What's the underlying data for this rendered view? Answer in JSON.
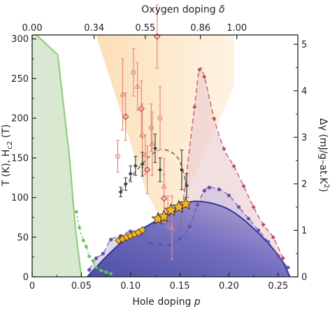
{
  "chart_data": {
    "type": "scatter",
    "xlabel_prefix": "Hole doping ",
    "xlabel_var": "p",
    "ylabel_left": "T (K), H",
    "ylabel_left_sub": "c2",
    "ylabel_left_suffix": " (T)",
    "xlabel_top_prefix": "Oxygen doping ",
    "xlabel_top_var": "δ",
    "ylabel_right": "Δγ (mJ/g–at.K",
    "ylabel_right_sup": "2",
    "ylabel_right_suffix": ")",
    "xlim": [
      0,
      0.27
    ],
    "ylim_left": [
      0,
      305
    ],
    "ylim_right": [
      0,
      5.2
    ],
    "x_ticks": [
      {
        "v": 0,
        "label": "0"
      },
      {
        "v": 0.05,
        "label": "0.05"
      },
      {
        "v": 0.1,
        "label": "0.10"
      },
      {
        "v": 0.15,
        "label": "0.15"
      },
      {
        "v": 0.2,
        "label": "0.20"
      },
      {
        "v": 0.25,
        "label": "0.25"
      }
    ],
    "y_ticks_left": [
      {
        "v": 0,
        "label": "0"
      },
      {
        "v": 50,
        "label": "50"
      },
      {
        "v": 100,
        "label": "100"
      },
      {
        "v": 150,
        "label": "150"
      },
      {
        "v": 200,
        "label": "200"
      },
      {
        "v": 250,
        "label": "250"
      },
      {
        "v": 300,
        "label": "300"
      }
    ],
    "y_ticks_right": [
      {
        "v": 0,
        "label": "0"
      },
      {
        "v": 1,
        "label": "1"
      },
      {
        "v": 2,
        "label": "2"
      },
      {
        "v": 3,
        "label": "3"
      },
      {
        "v": 4,
        "label": "4"
      },
      {
        "v": 5,
        "label": "5"
      }
    ],
    "top_ticks": [
      {
        "p": 0.0,
        "label": "0.00"
      },
      {
        "p": 0.063,
        "label": "0.34"
      },
      {
        "p": 0.115,
        "label": "0.55"
      },
      {
        "p": 0.171,
        "label": "0.86"
      },
      {
        "p": 0.208,
        "label": "1.00"
      }
    ],
    "colors": {
      "afm_fill": "#cfe3c5",
      "afm_line": "#8fcf7f",
      "green_points": "#6cbf5a",
      "pseudogap": "#fbd9a8",
      "pseudogap_points": "#e8887a",
      "dome_fill": "#5a59b3",
      "dome_line": "#2c3a9a",
      "cdw_points": "#3d3d3d",
      "orange_points": "#f5b62a",
      "star_fill": "#f7b42b",
      "purple": "#6b4fa8",
      "magenta": "#c2455a",
      "pink_fill": "#e9c9cf"
    },
    "series": [
      {
        "key": "tc_dome",
        "points": [
          [
            0.056,
            0
          ],
          [
            0.065,
            12
          ],
          [
            0.075,
            25
          ],
          [
            0.085,
            37
          ],
          [
            0.095,
            48
          ],
          [
            0.105,
            57
          ],
          [
            0.115,
            63
          ],
          [
            0.125,
            70
          ],
          [
            0.135,
            78
          ],
          [
            0.145,
            86
          ],
          [
            0.155,
            92
          ],
          [
            0.163,
            95
          ],
          [
            0.172,
            95
          ],
          [
            0.185,
            92
          ],
          [
            0.2,
            85
          ],
          [
            0.215,
            72
          ],
          [
            0.23,
            55
          ],
          [
            0.245,
            35
          ],
          [
            0.255,
            18
          ],
          [
            0.262,
            0
          ]
        ]
      },
      {
        "key": "afm_neel",
        "points": [
          [
            0.0,
            310
          ],
          [
            0.026,
            280
          ],
          [
            0.038,
            150
          ],
          [
            0.044,
            60
          ],
          [
            0.05,
            0
          ]
        ]
      },
      {
        "key": "green_points",
        "points": [
          [
            0.045,
            82
          ],
          [
            0.048,
            62
          ],
          [
            0.052,
            46
          ],
          [
            0.055,
            38
          ],
          [
            0.058,
            26
          ],
          [
            0.062,
            20
          ],
          [
            0.065,
            12
          ],
          [
            0.07,
            8
          ],
          [
            0.075,
            6
          ],
          [
            0.08,
            4
          ]
        ]
      },
      {
        "key": "pseudogap_points",
        "points": [
          {
            "x": 0.087,
            "y": 152,
            "err": 20
          },
          {
            "x": 0.092,
            "y": 230,
            "err": 45
          },
          {
            "x": 0.095,
            "y": 202,
            "err": 30
          },
          {
            "x": 0.103,
            "y": 258,
            "err": 30
          },
          {
            "x": 0.107,
            "y": 240,
            "err": 30
          },
          {
            "x": 0.111,
            "y": 212,
            "err": 35
          },
          {
            "x": 0.112,
            "y": 178,
            "err": 40
          },
          {
            "x": 0.115,
            "y": 154,
            "err": 25
          },
          {
            "x": 0.117,
            "y": 135,
            "err": 30
          },
          {
            "x": 0.121,
            "y": 188,
            "err": 30
          },
          {
            "x": 0.122,
            "y": 168,
            "err": 40
          },
          {
            "x": 0.127,
            "y": 303,
            "err": 40
          },
          {
            "x": 0.13,
            "y": 200,
            "err": 40
          },
          {
            "x": 0.134,
            "y": 114,
            "err": 35
          },
          {
            "x": 0.134,
            "y": 99,
            "err": 30
          },
          {
            "x": 0.138,
            "y": 82,
            "err": 20
          },
          {
            "x": 0.142,
            "y": 62,
            "err": 40
          }
        ]
      },
      {
        "key": "cdw_points",
        "points": [
          {
            "x": 0.09,
            "y": 107,
            "err": 6
          },
          {
            "x": 0.095,
            "y": 117,
            "err": 8
          },
          {
            "x": 0.1,
            "y": 130,
            "err": 10
          },
          {
            "x": 0.105,
            "y": 140,
            "err": 12
          },
          {
            "x": 0.112,
            "y": 142,
            "err": 15
          },
          {
            "x": 0.125,
            "y": 162,
            "err": 18
          },
          {
            "x": 0.13,
            "y": 135,
            "err": 15
          },
          {
            "x": 0.152,
            "y": 135,
            "err": 25
          },
          {
            "x": 0.157,
            "y": 115,
            "err": 15
          }
        ]
      },
      {
        "key": "orange_diamonds",
        "points": [
          [
            0.088,
            46
          ],
          [
            0.092,
            48
          ],
          [
            0.096,
            50
          ],
          [
            0.1,
            52
          ],
          [
            0.104,
            54
          ],
          [
            0.108,
            56
          ],
          [
            0.112,
            59
          ]
        ]
      },
      {
        "key": "stars",
        "points": [
          [
            0.128,
            73
          ],
          [
            0.134,
            76
          ],
          [
            0.141,
            84
          ],
          [
            0.149,
            88
          ],
          [
            0.156,
            92
          ]
        ]
      },
      {
        "key": "purple_gamma",
        "points": [
          [
            0.058,
            0.15
          ],
          [
            0.065,
            0.4
          ],
          [
            0.072,
            0.5
          ],
          [
            0.08,
            0.8
          ],
          [
            0.09,
            0.88
          ],
          [
            0.1,
            0.98
          ],
          [
            0.11,
            0.92
          ],
          [
            0.12,
            0.72
          ],
          [
            0.13,
            0.7
          ],
          [
            0.14,
            0.68
          ],
          [
            0.15,
            0.82
          ],
          [
            0.16,
            1.08
          ],
          [
            0.168,
            1.55
          ],
          [
            0.175,
            1.85
          ],
          [
            0.18,
            1.92
          ],
          [
            0.19,
            1.88
          ],
          [
            0.2,
            1.75
          ],
          [
            0.21,
            1.5
          ],
          [
            0.22,
            1.25
          ],
          [
            0.23,
            1.0
          ],
          [
            0.24,
            0.75
          ],
          [
            0.25,
            0.45
          ],
          [
            0.26,
            0.2
          ]
        ]
      },
      {
        "key": "magenta_gamma",
        "points": [
          [
            0.165,
            3.65
          ],
          [
            0.17,
            4.45
          ],
          [
            0.175,
            4.3
          ],
          [
            0.185,
            3.4
          ],
          [
            0.195,
            2.75
          ],
          [
            0.205,
            2.38
          ],
          [
            0.215,
            1.95
          ],
          [
            0.225,
            1.5
          ],
          [
            0.235,
            1.12
          ],
          [
            0.245,
            0.85
          ],
          [
            0.255,
            0.4
          ]
        ]
      }
    ]
  }
}
